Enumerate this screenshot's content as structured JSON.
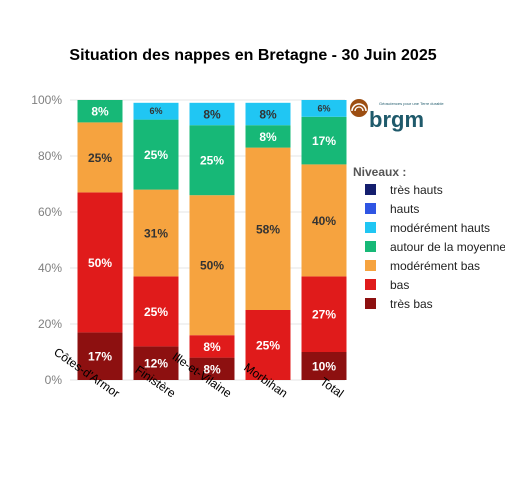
{
  "chart_data": {
    "type": "bar",
    "stacked": true,
    "title": "Situation des nappes en Bretagne - 30 Juin 2025",
    "categories": [
      "Côtes-d'Armor",
      "Finistère",
      "Ille-et-Vilaine",
      "Morbihan",
      "Total"
    ],
    "ylim": [
      0,
      100
    ],
    "yticks": [
      "0%",
      "20%",
      "40%",
      "60%",
      "80%",
      "100%"
    ],
    "grid": true,
    "legend_position": "right",
    "legend_title": "Niveaux :",
    "legend": [
      {
        "label": "très hauts",
        "color": "#141e6e"
      },
      {
        "label": "hauts",
        "color": "#2f55e3"
      },
      {
        "label": "modérément hauts",
        "color": "#20c6f3"
      },
      {
        "label": "autour de la moyenne",
        "color": "#17b877"
      },
      {
        "label": "modérément bas",
        "color": "#f6a33f"
      },
      {
        "label": "bas",
        "color": "#e01b1b"
      },
      {
        "label": "très bas",
        "color": "#8d1010"
      }
    ],
    "series": [
      {
        "name": "très bas",
        "color": "#8d1010",
        "values": [
          17,
          12,
          8,
          0,
          10
        ],
        "labels": [
          "17%",
          "12%",
          "8%",
          "",
          "10%"
        ]
      },
      {
        "name": "bas",
        "color": "#e01b1b",
        "values": [
          50,
          25,
          8,
          25,
          27
        ],
        "labels": [
          "50%",
          "25%",
          "8%",
          "25%",
          "27%"
        ]
      },
      {
        "name": "modérément bas",
        "color": "#f6a33f",
        "values": [
          25,
          31,
          50,
          58,
          40
        ],
        "labels": [
          "25%",
          "31%",
          "50%",
          "58%",
          "40%"
        ]
      },
      {
        "name": "autour de la moyenne",
        "color": "#17b877",
        "values": [
          8,
          25,
          25,
          8,
          17
        ],
        "labels": [
          "8%",
          "25%",
          "25%",
          "8%",
          "17%"
        ]
      },
      {
        "name": "modérément hauts",
        "color": "#20c6f3",
        "values": [
          0,
          6,
          8,
          8,
          6
        ],
        "labels": [
          "",
          "6%",
          "8%",
          "8%",
          "6%"
        ]
      }
    ]
  },
  "logo": {
    "word": "brgm",
    "tagline": "Géosciences pour une Terre durable"
  }
}
